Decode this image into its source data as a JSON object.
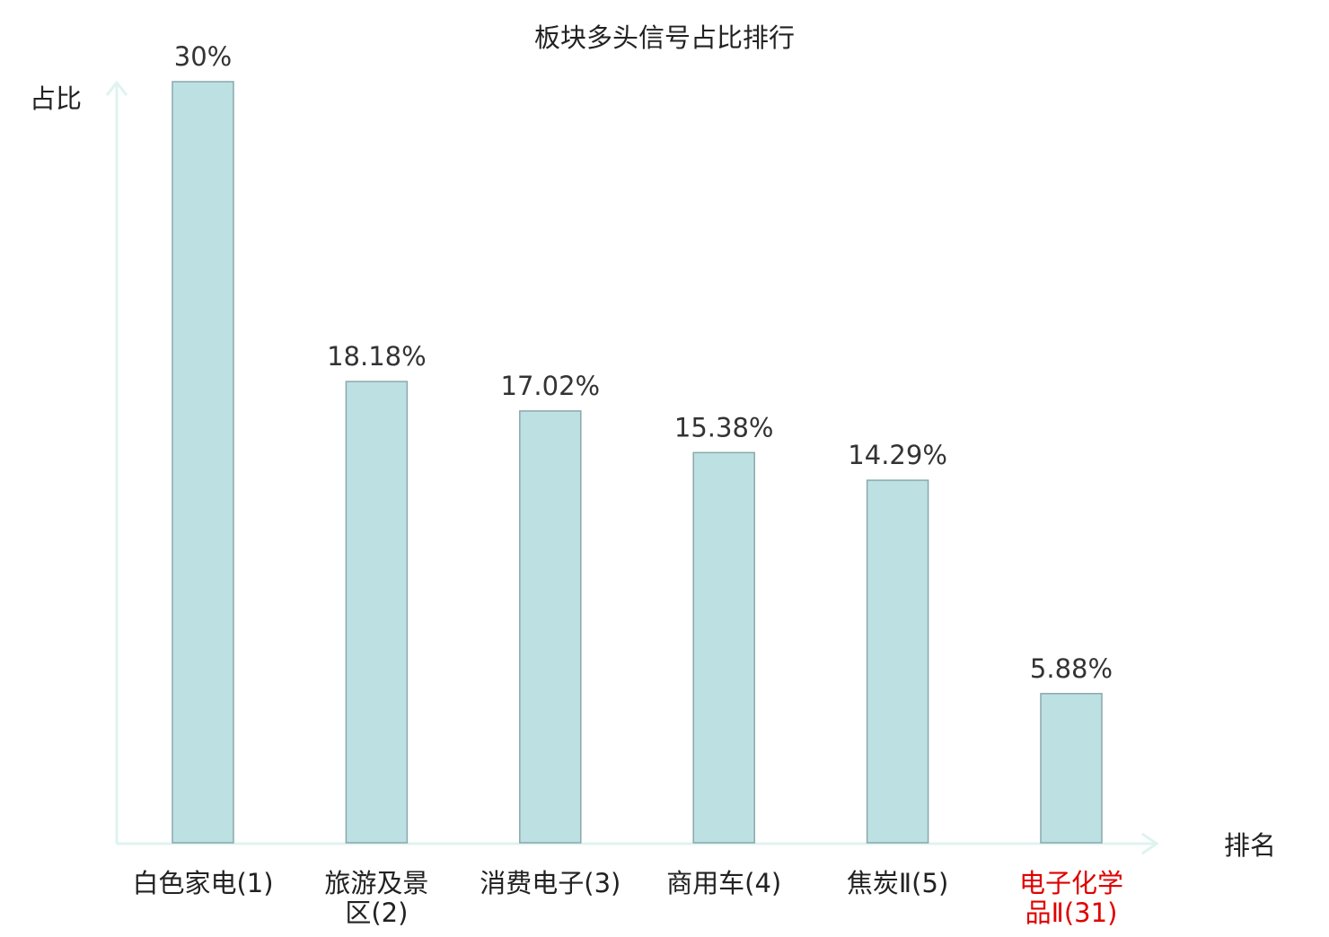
{
  "chart_data": {
    "type": "bar",
    "title": "板块多头信号占比排行",
    "ylabel": "占比",
    "xlabel": "排名",
    "categories": [
      [
        "白色家电(1)"
      ],
      [
        "旅游及景",
        "区(2)"
      ],
      [
        "消费电子(3)"
      ],
      [
        "商用车(4)"
      ],
      [
        "焦炭Ⅱ(5)"
      ],
      [
        "电子化学",
        "品Ⅱ(31)"
      ]
    ],
    "values": [
      30,
      18.18,
      17.02,
      15.38,
      14.29,
      5.88
    ],
    "value_labels": [
      "30%",
      "18.18%",
      "17.02%",
      "15.38%",
      "14.29%",
      "5.88%"
    ],
    "highlight_index": 5,
    "ylim": [
      0,
      30
    ],
    "grid": false,
    "legend": "none",
    "colors": {
      "bar_fill": "#bde0e3",
      "bar_stroke": "#8aa8ab",
      "axis": "#dff3ef",
      "text": "#222222",
      "value_text": "#333333",
      "highlight_text": "#e00000"
    }
  }
}
